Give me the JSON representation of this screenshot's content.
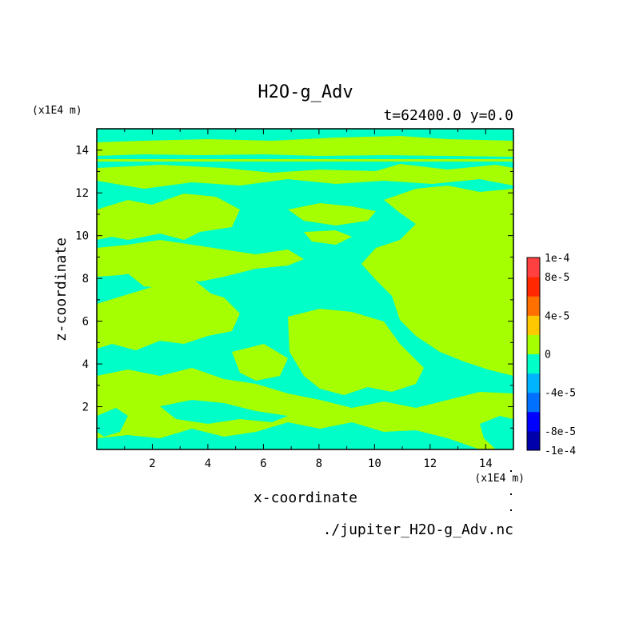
{
  "chart_data": {
    "type": "heatmap",
    "title": "H2O-g_Adv",
    "subtitle": "t=62400.0 y=0.0",
    "xlabel": "x-coordinate",
    "ylabel": "z-coordinate",
    "x_unit": "(x1E4 m)",
    "y_unit": "(x1E4 m)",
    "xlim": [
      0,
      15
    ],
    "ylim": [
      0,
      15
    ],
    "x_ticks": [
      "2",
      "4",
      "6",
      "8",
      "10",
      "12",
      "14"
    ],
    "y_ticks": [
      "2",
      "4",
      "6",
      "8",
      "10",
      "12",
      "14"
    ],
    "source_file": "./jupiter_H2O-g_Adv.nc",
    "colorbar": {
      "labels": [
        "1e-4",
        "8e-5",
        "4e-5",
        "0",
        "-4e-5",
        "-8e-5",
        "-1e-4"
      ],
      "levels": [
        -0.0001,
        -8e-05,
        -6e-05,
        -4e-05,
        -2e-05,
        0,
        2e-05,
        4e-05,
        6e-05,
        8e-05,
        0.0001
      ],
      "colors": [
        "#0000aa",
        "#0000ff",
        "#0070ff",
        "#00b4ff",
        "#00ffc8",
        "#a6ff00",
        "#ffc800",
        "#ff7000",
        "#ff2800",
        "#ff4040"
      ]
    },
    "field_colors": {
      "negative": "#00ffc8",
      "positive": "#a6ff00"
    },
    "field_note": "field alternates between slightly negative (-2e-5..0) and slightly positive (0..2e-5) contour bands"
  }
}
